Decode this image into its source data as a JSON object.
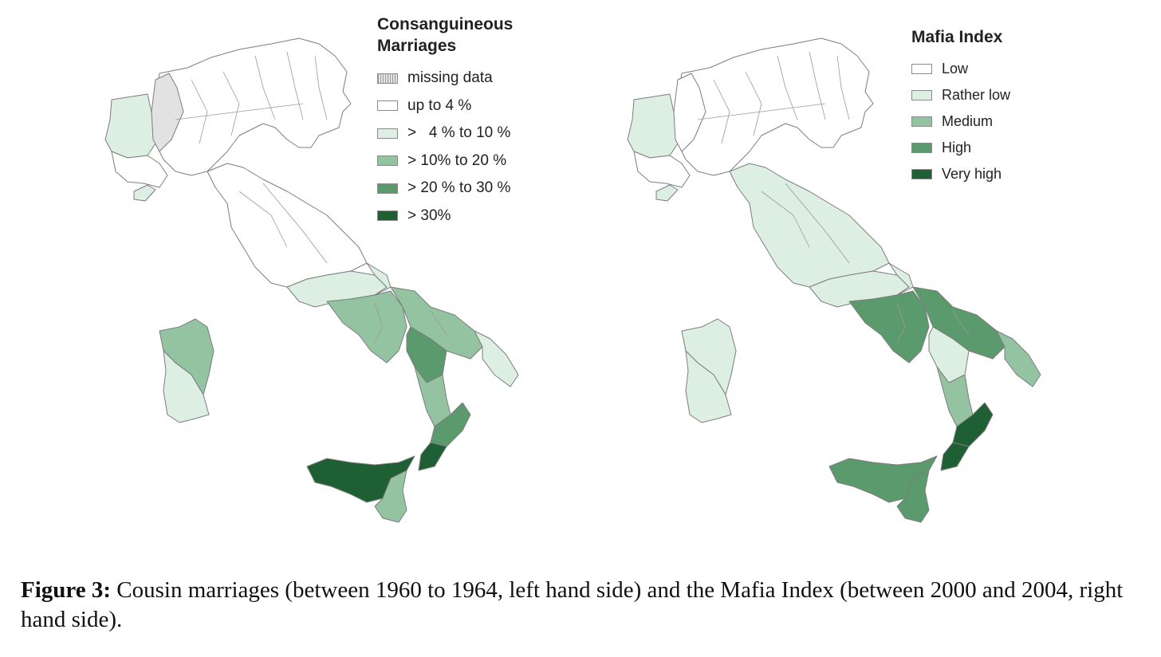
{
  "palette": {
    "white": "#ffffff",
    "light": "#dcefe2",
    "medium": "#94c3a1",
    "high": "#5a9a6c",
    "veryhigh": "#1f5f34",
    "missing": "#e2e2e2"
  },
  "left_map": {
    "legend_title": "Consanguineous Marriages",
    "legend": [
      {
        "label": "missing data",
        "class": "missing"
      },
      {
        "label": "up to 4 %",
        "class": "white"
      },
      {
        "label": ">   4 % to 10 %",
        "class": "light"
      },
      {
        "label": "> 10% to 20 %",
        "class": "medium"
      },
      {
        "label": "> 20 % to 30 %",
        "class": "high"
      },
      {
        "label": "> 30%",
        "class": "veryhigh"
      }
    ],
    "regions": {
      "piedmont_west": "light",
      "aosta": "missing",
      "liguria_west": "light",
      "north": "white",
      "tuscany": "white",
      "lazio_south": "light",
      "campania": "medium",
      "molise": "light",
      "apulia_north": "medium",
      "apulia_south": "light",
      "basilicata": "high",
      "calabria_north": "medium",
      "calabria_mid": "high",
      "calabria_south": "veryhigh",
      "sicily_west": "veryhigh",
      "sicily_east": "medium",
      "sardinia_north": "medium",
      "sardinia_south": "light"
    }
  },
  "right_map": {
    "legend_title": "Mafia Index",
    "legend": [
      {
        "label": "Low",
        "class": "white"
      },
      {
        "label": "Rather low",
        "class": "light"
      },
      {
        "label": "Medium",
        "class": "medium"
      },
      {
        "label": "High",
        "class": "high"
      },
      {
        "label": "Very high",
        "class": "veryhigh"
      }
    ],
    "regions": {
      "piedmont_west": "light",
      "aosta": "white",
      "liguria_west": "light",
      "north": "white",
      "tuscany": "light",
      "lazio_south": "light",
      "campania": "high",
      "molise": "light",
      "apulia_north": "high",
      "apulia_south": "medium",
      "basilicata": "light",
      "calabria_north": "medium",
      "calabria_mid": "veryhigh",
      "calabria_south": "veryhigh",
      "sicily_west": "high",
      "sicily_east": "high",
      "sardinia_north": "light",
      "sardinia_south": "light"
    }
  },
  "caption": {
    "label": "Figure 3:",
    "text": " Cousin marriages (between 1960 to 1964, left hand side) and the Mafia Index (between 2000 and 2004, right hand side)."
  }
}
